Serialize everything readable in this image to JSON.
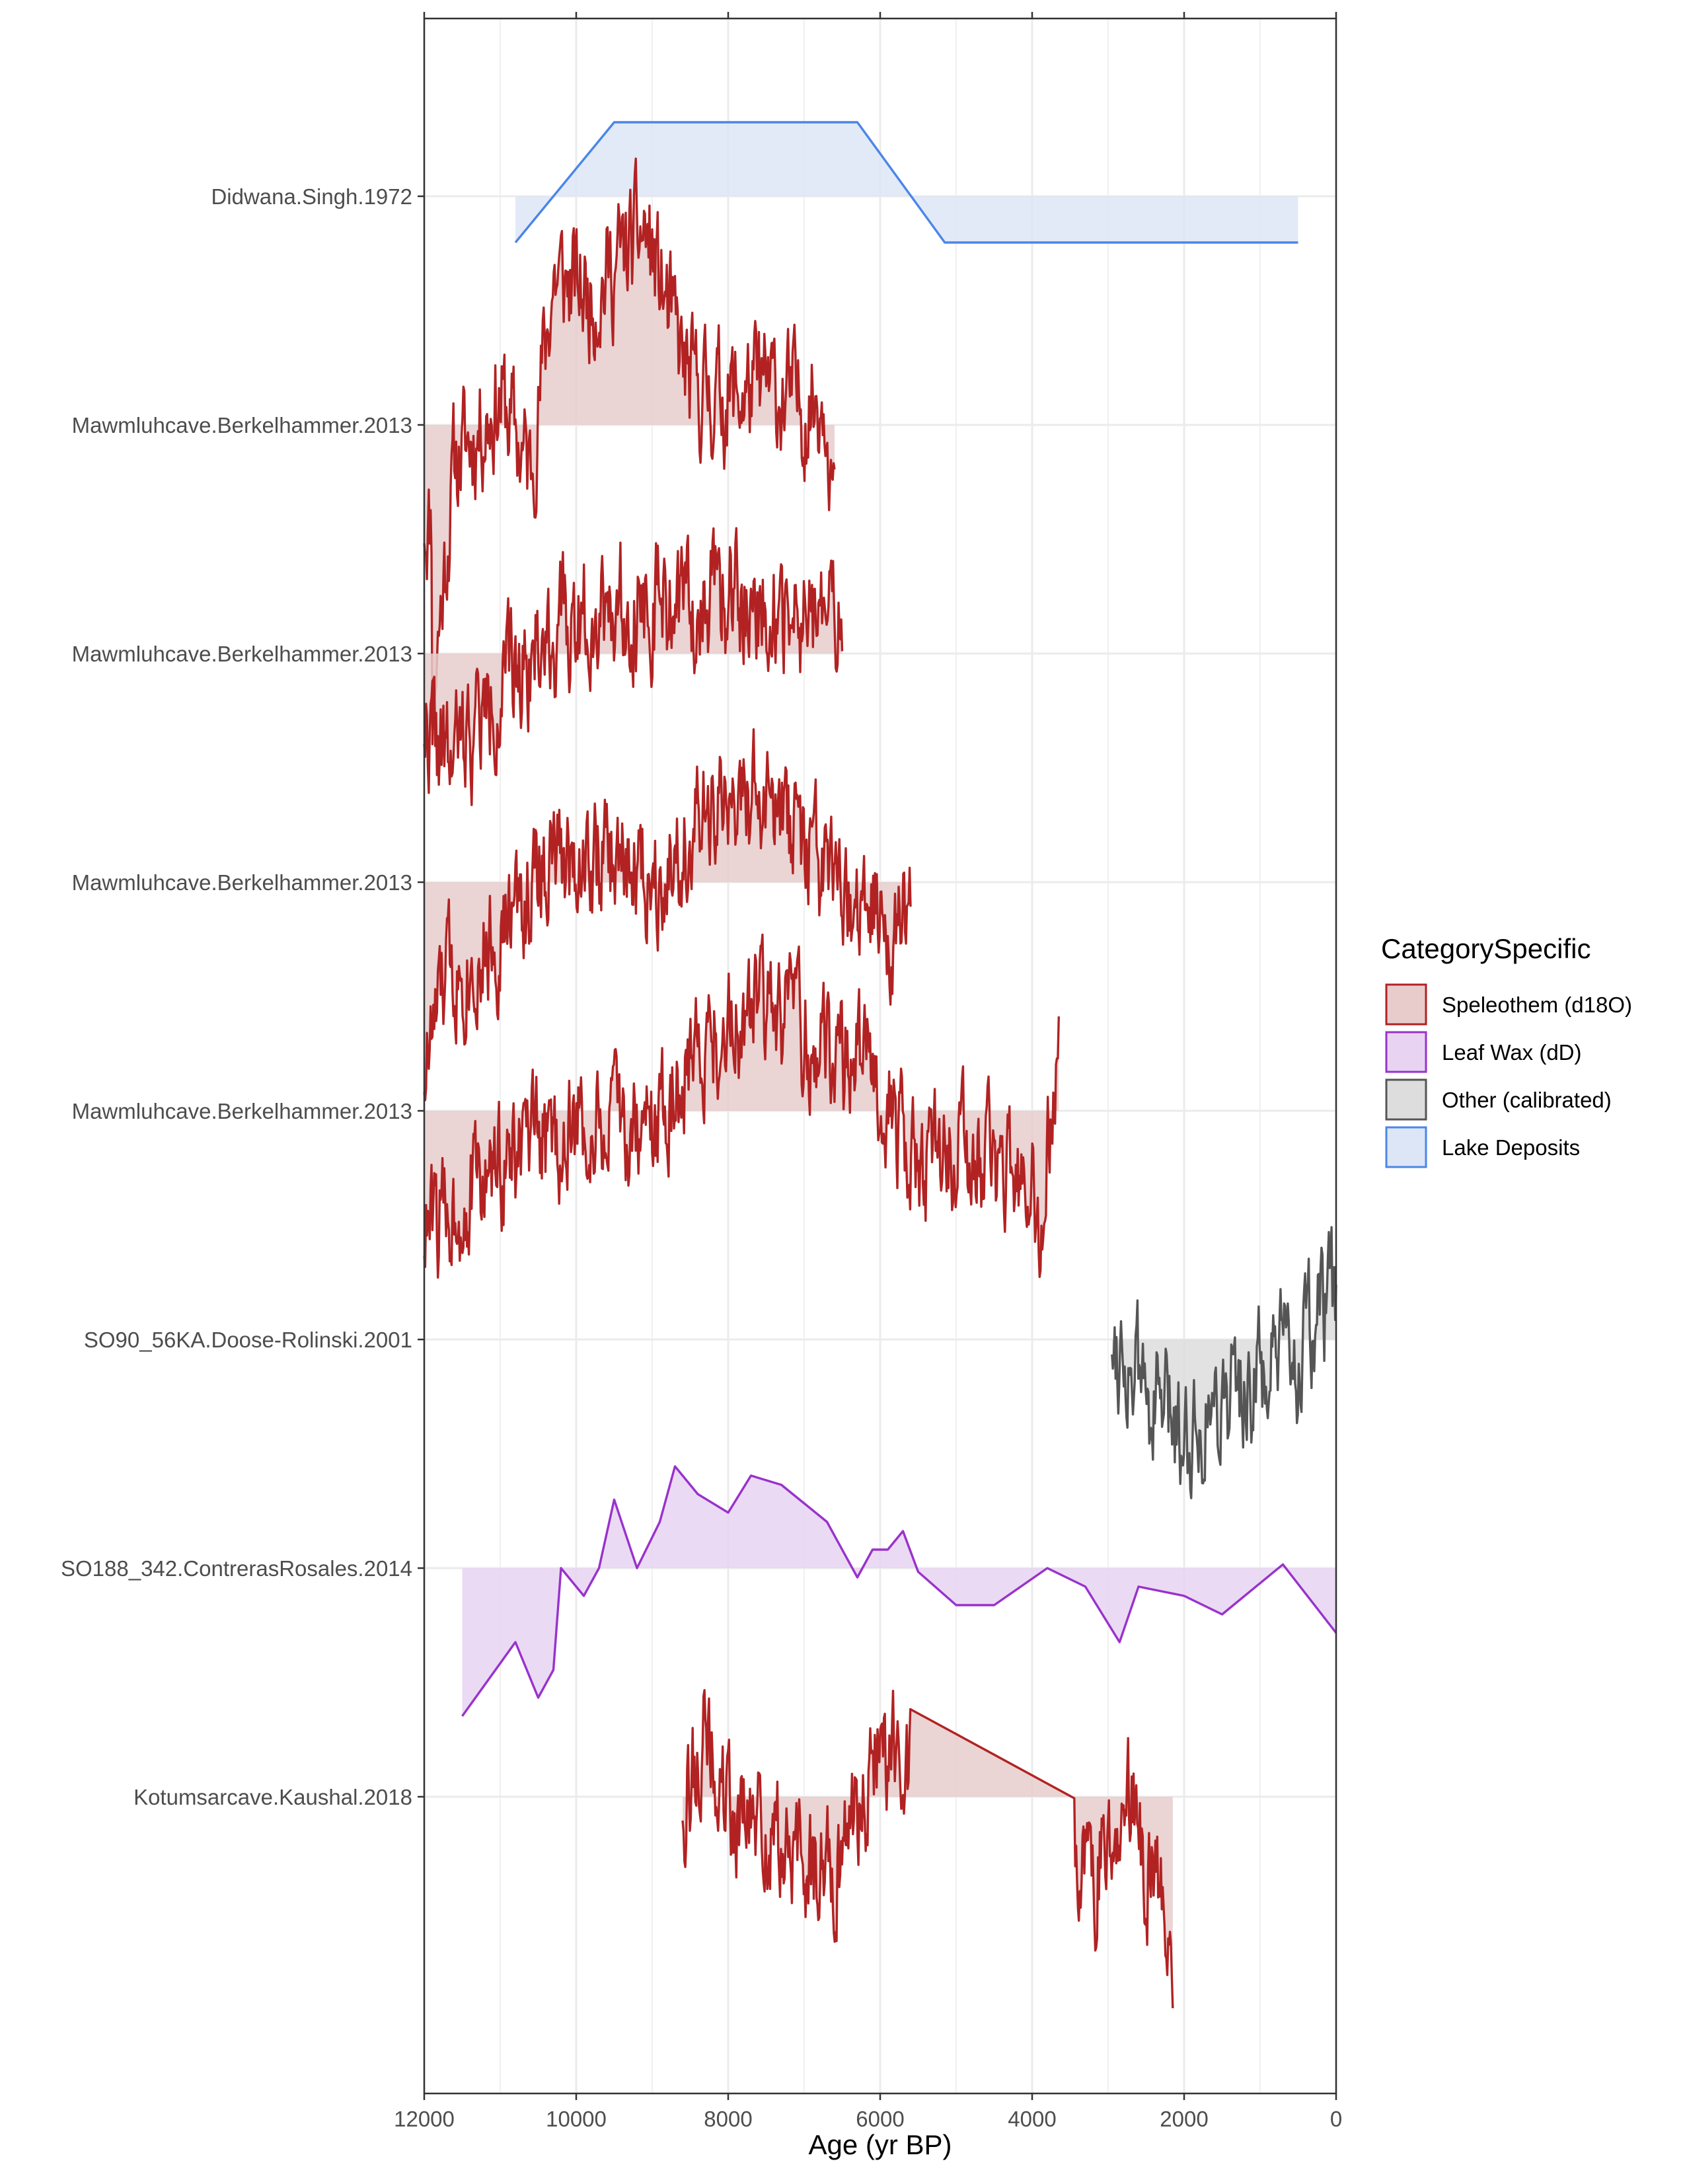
{
  "chart_data": {
    "type": "line",
    "title": "",
    "xlabel": "Age (yr BP)",
    "ylabel": "",
    "xlim": [
      12000,
      0
    ],
    "x_reversed": true,
    "x_ticks": [
      12000,
      10000,
      8000,
      6000,
      4000,
      2000,
      0
    ],
    "x_tick_labels": [
      "12000",
      "10000",
      "8000",
      "6000",
      "4000",
      "2000",
      "0"
    ],
    "grid": true,
    "legend": {
      "title": "CategorySpecific",
      "position": "right",
      "entries": [
        {
          "label": "Speleothem (d18O)",
          "fill": "#e8cccc",
          "stroke": "#b22222"
        },
        {
          "label": "Leaf Wax (dD)",
          "fill": "#e8d4f2",
          "stroke": "#9932cc"
        },
        {
          "label": "Other (calibrated)",
          "fill": "#dddddd",
          "stroke": "#555555"
        },
        {
          "label": "Lake Deposits",
          "fill": "#dde6f7",
          "stroke": "#4a86e8"
        }
      ]
    },
    "rows": [
      "Didwana.Singh.1972",
      "Mawmluhcave.Berkelhammer.2013",
      "Mawmluhcave.Berkelhammer.2013",
      "Mawmluhcave.Berkelhammer.2013",
      "Mawmluhcave.Berkelhammer.2013",
      "SO90_56KA.Doose-Rolinski.2001",
      "SO188_342.ContrerasRosales.2014",
      "Kotumsarcave.Kaushal.2018"
    ],
    "series": [
      {
        "row": 0,
        "category": "Lake Deposits",
        "kind": "points",
        "x": [
          10800,
          9500,
          6300,
          5150,
          500
        ],
        "y": [
          -0.25,
          0.4,
          0.4,
          -0.25,
          -0.25
        ]
      },
      {
        "row": 1,
        "category": "Speleothem (d18O)",
        "kind": "noisy",
        "x_range": [
          12000,
          6600
        ],
        "anomaly_scale": 0.6,
        "seed": 11,
        "anchors": [
          [
            11900,
            -1.5
          ],
          [
            11600,
            -0.2
          ],
          [
            11000,
            0.15
          ],
          [
            10600,
            -0.25
          ],
          [
            10300,
            0.8
          ],
          [
            9800,
            0.7
          ],
          [
            9100,
            1.05
          ],
          [
            8500,
            0.2
          ],
          [
            8000,
            0.15
          ],
          [
            7500,
            0.2
          ],
          [
            7000,
            0.1
          ],
          [
            6700,
            0.2
          ],
          [
            6600,
            -0.5
          ]
        ]
      },
      {
        "row": 2,
        "category": "Speleothem (d18O)",
        "kind": "noisy",
        "x_range": [
          12000,
          6500
        ],
        "anomaly_scale": 0.6,
        "seed": 22,
        "anchors": [
          [
            12000,
            -0.35
          ],
          [
            11700,
            -0.6
          ],
          [
            11000,
            -0.2
          ],
          [
            10500,
            0.05
          ],
          [
            9600,
            0.3
          ],
          [
            8700,
            0.25
          ],
          [
            7800,
            0.3
          ],
          [
            7000,
            0.15
          ],
          [
            6500,
            0.2
          ]
        ]
      },
      {
        "row": 3,
        "category": "Speleothem (d18O)",
        "kind": "noisy",
        "x_range": [
          12000,
          5600
        ],
        "anomaly_scale": 0.6,
        "seed": 33,
        "anchors": [
          [
            12000,
            -1.0
          ],
          [
            11700,
            -0.5
          ],
          [
            11000,
            -0.3
          ],
          [
            10400,
            0.1
          ],
          [
            10000,
            0.15
          ],
          [
            9000,
            0.05
          ],
          [
            8600,
            0.2
          ],
          [
            8000,
            0.4
          ],
          [
            7600,
            0.45
          ],
          [
            7000,
            0.2
          ],
          [
            6500,
            -0.15
          ],
          [
            5600,
            -0.2
          ]
        ]
      },
      {
        "row": 4,
        "category": "Speleothem (d18O)",
        "kind": "noisy",
        "x_range": [
          12000,
          3650
        ],
        "anomaly_scale": 0.6,
        "seed": 44,
        "anchors": [
          [
            12000,
            -0.65
          ],
          [
            11000,
            -0.3
          ],
          [
            10000,
            -0.1
          ],
          [
            9000,
            -0.1
          ],
          [
            8400,
            0.35
          ],
          [
            7600,
            0.55
          ],
          [
            6800,
            0.35
          ],
          [
            6000,
            0.2
          ],
          [
            5600,
            -0.3
          ],
          [
            5000,
            -0.2
          ],
          [
            4400,
            -0.3
          ],
          [
            4000,
            -0.5
          ],
          [
            3900,
            -0.9
          ],
          [
            3700,
            0.3
          ]
        ]
      },
      {
        "row": 5,
        "category": "Other (calibrated)",
        "kind": "noisy",
        "x_range": [
          2950,
          0
        ],
        "anomaly_scale": 0.6,
        "seed": 55,
        "anchors": [
          [
            2950,
            0.05
          ],
          [
            2500,
            -0.3
          ],
          [
            2000,
            -0.5
          ],
          [
            1500,
            -0.3
          ],
          [
            1000,
            -0.2
          ],
          [
            500,
            -0.1
          ],
          [
            0,
            0.25
          ]
        ]
      },
      {
        "row": 6,
        "category": "Leaf Wax (dD)",
        "kind": "points",
        "x": [
          11500,
          10800,
          10500,
          10300,
          10200,
          9900,
          9700,
          9500,
          9200,
          8900,
          8700,
          8400,
          8000,
          7700,
          7300,
          7000,
          6700,
          6300,
          6100,
          5900,
          5700,
          5500,
          5000,
          4500,
          3800,
          3300,
          2850,
          2600,
          2000,
          1500,
          700,
          0
        ],
        "y": [
          -0.8,
          -0.4,
          -0.7,
          -0.55,
          0.0,
          -0.15,
          0.0,
          0.37,
          0.0,
          0.25,
          0.55,
          0.4,
          0.3,
          0.5,
          0.45,
          0.35,
          0.25,
          -0.05,
          0.1,
          0.1,
          0.2,
          -0.02,
          -0.2,
          -0.2,
          0.0,
          -0.1,
          -0.4,
          -0.1,
          -0.15,
          -0.25,
          0.02,
          -0.35
        ]
      },
      {
        "row": 7,
        "category": "Speleothem (d18O)",
        "kind": "noisy",
        "x_range": [
          8600,
          2150
        ],
        "gap": [
          5600,
          3450
        ],
        "anomaly_scale": 0.6,
        "seed": 66,
        "anchors": [
          [
            8600,
            0.0
          ],
          [
            8300,
            0.3
          ],
          [
            8000,
            -0.1
          ],
          [
            7500,
            -0.2
          ],
          [
            7000,
            -0.4
          ],
          [
            6500,
            -0.3
          ],
          [
            6000,
            0.3
          ],
          [
            5600,
            0.2
          ],
          [
            3450,
            -0.2
          ],
          [
            3200,
            -0.5
          ],
          [
            2800,
            0.1
          ],
          [
            2500,
            -0.4
          ],
          [
            2150,
            -0.8
          ]
        ]
      }
    ]
  }
}
